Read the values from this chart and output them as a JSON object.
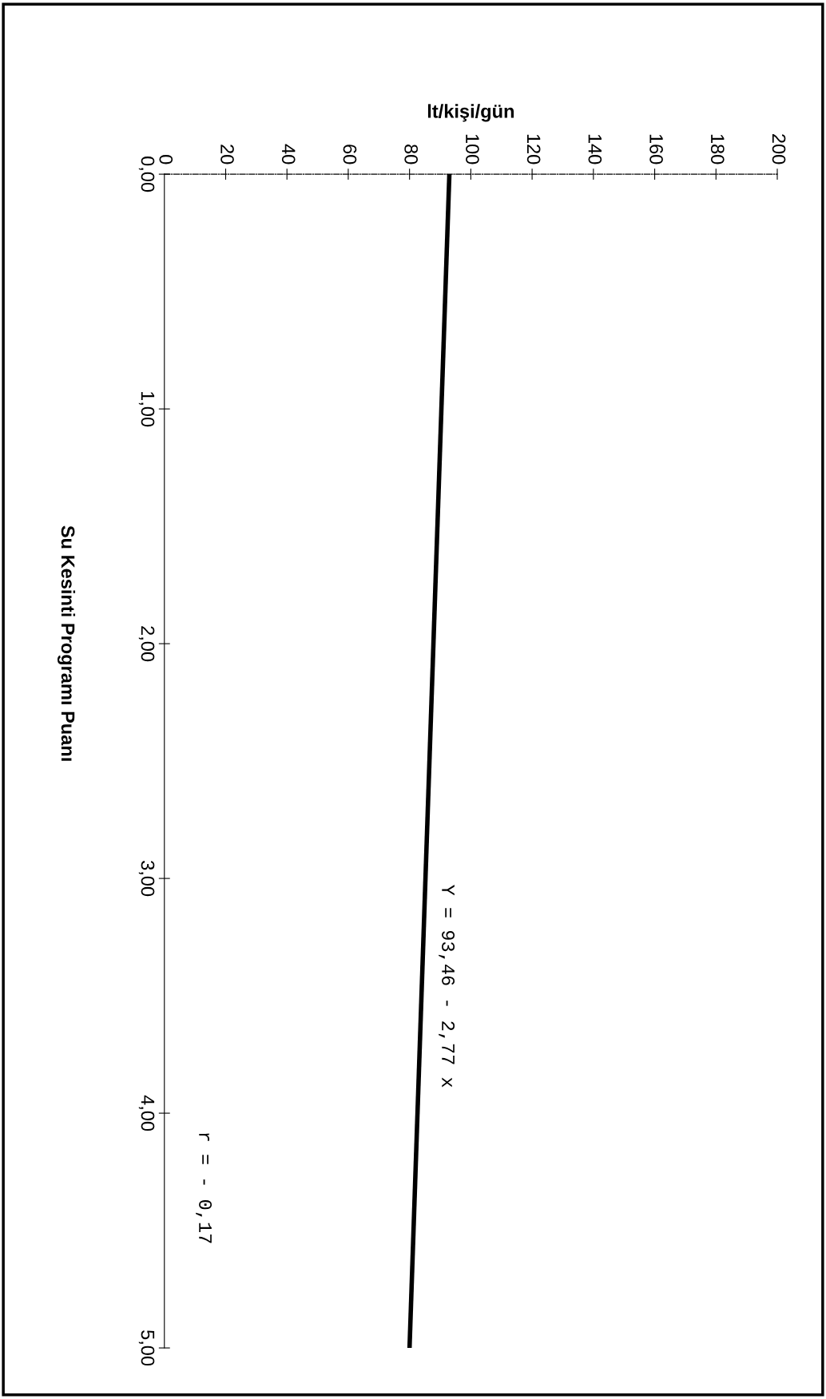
{
  "chart_data": {
    "type": "line",
    "xlabel": "lt/kişi/gün",
    "ylabel": "Su Kesinti Programı Puanı",
    "x": [
      93,
      80
    ],
    "series": [
      {
        "color": "#000000",
        "values": [
          0,
          5
        ]
      }
    ],
    "xlim": [
      0,
      200
    ],
    "xticks": [
      0,
      20,
      40,
      60,
      80,
      100,
      120,
      140,
      160,
      180,
      200
    ],
    "ylim": [
      5,
      0
    ],
    "yticks": [
      {
        "value": 0,
        "label": "0,00"
      },
      {
        "value": 1,
        "label": "1,00"
      },
      {
        "value": 2,
        "label": "2,00"
      },
      {
        "value": 3,
        "label": "3,00"
      },
      {
        "value": 4,
        "label": "4,00"
      },
      {
        "value": 5,
        "label": "5,00"
      }
    ],
    "annotations": [
      "Y = 93,46 - 2,77 x",
      "r = - 0,17"
    ],
    "grid": false,
    "marker": "none",
    "line_style": "solid"
  }
}
